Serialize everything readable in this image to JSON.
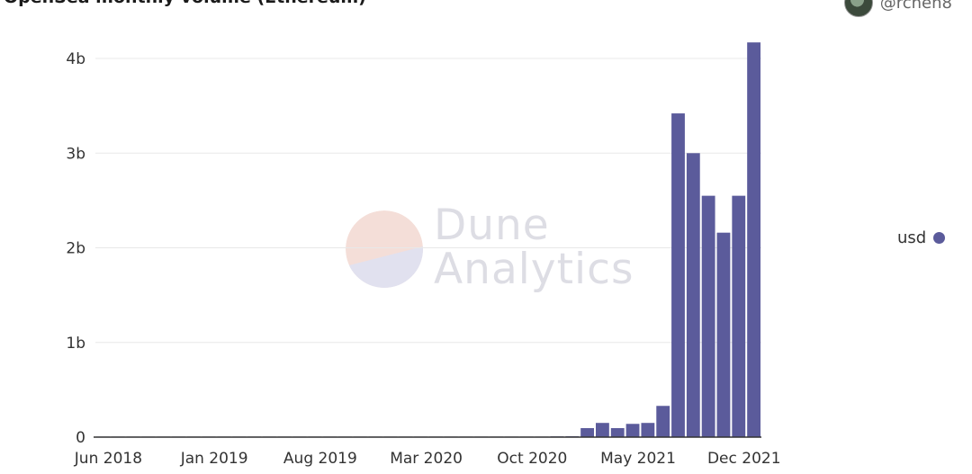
{
  "header": {
    "title": "OpenSea monthly volume (Ethereum)",
    "author": "@rchen8"
  },
  "watermark": {
    "line1": "Dune",
    "line2": "Analytics"
  },
  "colors": {
    "bar": "#5b5b9b",
    "grid": "#e8e8e8",
    "axis": "#333333"
  },
  "chart_data": {
    "type": "bar",
    "x_tick_labels": [
      "Jun 2018",
      "Jan 2019",
      "Aug 2019",
      "Mar 2020",
      "Oct 2020",
      "May 2021",
      "Dec 2021"
    ],
    "y_tick_labels": [
      "0",
      "1b",
      "2b",
      "3b",
      "4b"
    ],
    "ylim": [
      0,
      4200000000
    ],
    "grid": true,
    "legend_position": "right",
    "categories": [
      "2018-06",
      "2018-07",
      "2018-08",
      "2018-09",
      "2018-10",
      "2018-11",
      "2018-12",
      "2019-01",
      "2019-02",
      "2019-03",
      "2019-04",
      "2019-05",
      "2019-06",
      "2019-07",
      "2019-08",
      "2019-09",
      "2019-10",
      "2019-11",
      "2019-12",
      "2020-01",
      "2020-02",
      "2020-03",
      "2020-04",
      "2020-05",
      "2020-06",
      "2020-07",
      "2020-08",
      "2020-09",
      "2020-10",
      "2020-11",
      "2020-12",
      "2021-01",
      "2021-02",
      "2021-03",
      "2021-04",
      "2021-05",
      "2021-06",
      "2021-07",
      "2021-08",
      "2021-09",
      "2021-10",
      "2021-11",
      "2021-12",
      "2022-01"
    ],
    "series": [
      {
        "name": "usd",
        "values": [
          300000,
          300000,
          400000,
          500000,
          600000,
          800000,
          700000,
          600000,
          800000,
          900000,
          1000000,
          1200000,
          1500000,
          1300000,
          1200000,
          1000000,
          1100000,
          1200000,
          1100000,
          1000000,
          1300000,
          1400000,
          1200000,
          1100000,
          1500000,
          2000000,
          2500000,
          3000000,
          3500000,
          5000000,
          8000000,
          9000000,
          95000000,
          150000000,
          95000000,
          140000000,
          150000000,
          330000000,
          3420000000,
          3000000000,
          2550000000,
          2160000000,
          2550000000,
          4170000000
        ]
      }
    ]
  }
}
